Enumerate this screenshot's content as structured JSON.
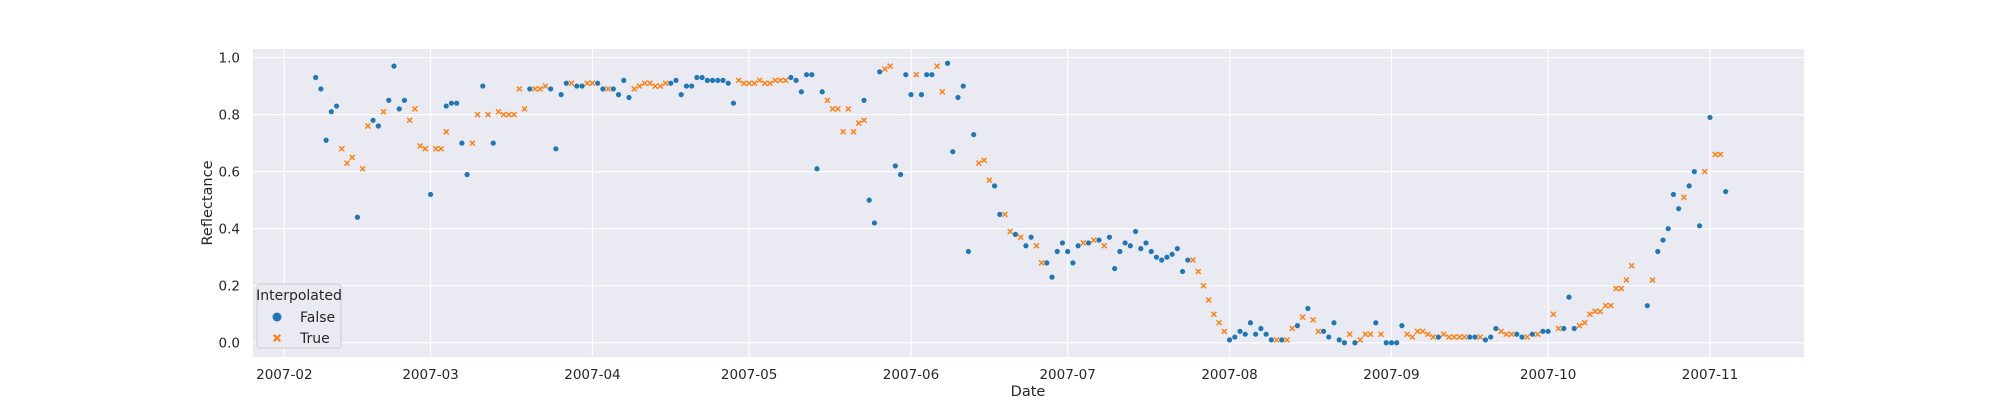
{
  "chart_data": {
    "type": "scatter",
    "title": "",
    "xlabel": "Date",
    "ylabel": "Reflectance",
    "xlim": [
      "2007-01-26",
      "2007-11-19"
    ],
    "ylim": [
      -0.05,
      1.03
    ],
    "x_ticks": [
      "2007-02-01",
      "2007-03-01",
      "2007-04-01",
      "2007-05-01",
      "2007-06-01",
      "2007-07-01",
      "2007-08-01",
      "2007-09-01",
      "2007-10-01",
      "2007-11-01"
    ],
    "x_tick_labels": [
      "2007-02",
      "2007-03",
      "2007-04",
      "2007-05",
      "2007-06",
      "2007-07",
      "2007-08",
      "2007-09",
      "2007-10",
      "2007-11"
    ],
    "y_ticks": [
      0.0,
      0.2,
      0.4,
      0.6,
      0.8,
      1.0
    ],
    "y_tick_labels": [
      "0.0",
      "0.2",
      "0.4",
      "0.6",
      "0.8",
      "1.0"
    ],
    "grid": true,
    "legend": {
      "title": "Interpolated",
      "placement": "lower-left",
      "entries": [
        "False",
        "True"
      ]
    },
    "series": [
      {
        "name": "False",
        "color": "#1f77b4",
        "marker": "circle",
        "points": [
          [
            "2007-02-07",
            0.93
          ],
          [
            "2007-02-08",
            0.89
          ],
          [
            "2007-02-09",
            0.71
          ],
          [
            "2007-02-10",
            0.81
          ],
          [
            "2007-02-11",
            0.83
          ],
          [
            "2007-02-15",
            0.44
          ],
          [
            "2007-02-18",
            0.78
          ],
          [
            "2007-02-19",
            0.76
          ],
          [
            "2007-02-21",
            0.85
          ],
          [
            "2007-02-22",
            0.97
          ],
          [
            "2007-02-23",
            0.82
          ],
          [
            "2007-02-24",
            0.85
          ],
          [
            "2007-03-01",
            0.52
          ],
          [
            "2007-03-04",
            0.83
          ],
          [
            "2007-03-05",
            0.84
          ],
          [
            "2007-03-06",
            0.84
          ],
          [
            "2007-03-07",
            0.7
          ],
          [
            "2007-03-08",
            0.59
          ],
          [
            "2007-03-11",
            0.9
          ],
          [
            "2007-03-13",
            0.7
          ],
          [
            "2007-03-20",
            0.89
          ],
          [
            "2007-03-24",
            0.89
          ],
          [
            "2007-03-25",
            0.68
          ],
          [
            "2007-03-26",
            0.87
          ],
          [
            "2007-03-27",
            0.91
          ],
          [
            "2007-03-29",
            0.9
          ],
          [
            "2007-03-30",
            0.9
          ],
          [
            "2007-04-02",
            0.91
          ],
          [
            "2007-04-03",
            0.89
          ],
          [
            "2007-04-05",
            0.89
          ],
          [
            "2007-04-06",
            0.87
          ],
          [
            "2007-04-07",
            0.92
          ],
          [
            "2007-04-08",
            0.86
          ],
          [
            "2007-04-16",
            0.91
          ],
          [
            "2007-04-17",
            0.92
          ],
          [
            "2007-04-18",
            0.87
          ],
          [
            "2007-04-19",
            0.9
          ],
          [
            "2007-04-20",
            0.9
          ],
          [
            "2007-04-21",
            0.93
          ],
          [
            "2007-04-22",
            0.93
          ],
          [
            "2007-04-23",
            0.92
          ],
          [
            "2007-04-24",
            0.92
          ],
          [
            "2007-04-25",
            0.92
          ],
          [
            "2007-04-26",
            0.92
          ],
          [
            "2007-04-27",
            0.91
          ],
          [
            "2007-04-28",
            0.84
          ],
          [
            "2007-05-09",
            0.93
          ],
          [
            "2007-05-10",
            0.92
          ],
          [
            "2007-05-11",
            0.88
          ],
          [
            "2007-05-12",
            0.94
          ],
          [
            "2007-05-13",
            0.94
          ],
          [
            "2007-05-14",
            0.61
          ],
          [
            "2007-05-15",
            0.88
          ],
          [
            "2007-05-23",
            0.85
          ],
          [
            "2007-05-24",
            0.5
          ],
          [
            "2007-05-25",
            0.42
          ],
          [
            "2007-05-26",
            0.95
          ],
          [
            "2007-05-29",
            0.62
          ],
          [
            "2007-05-30",
            0.59
          ],
          [
            "2007-05-31",
            0.94
          ],
          [
            "2007-06-01",
            0.87
          ],
          [
            "2007-06-03",
            0.87
          ],
          [
            "2007-06-04",
            0.94
          ],
          [
            "2007-06-05",
            0.94
          ],
          [
            "2007-06-08",
            0.98
          ],
          [
            "2007-06-09",
            0.67
          ],
          [
            "2007-06-10",
            0.86
          ],
          [
            "2007-06-11",
            0.9
          ],
          [
            "2007-06-12",
            0.32
          ],
          [
            "2007-06-13",
            0.73
          ],
          [
            "2007-06-17",
            0.55
          ],
          [
            "2007-06-18",
            0.45
          ],
          [
            "2007-06-21",
            0.38
          ],
          [
            "2007-06-23",
            0.34
          ],
          [
            "2007-06-24",
            0.37
          ],
          [
            "2007-06-27",
            0.28
          ],
          [
            "2007-06-28",
            0.23
          ],
          [
            "2007-06-29",
            0.32
          ],
          [
            "2007-06-30",
            0.35
          ],
          [
            "2007-07-01",
            0.32
          ],
          [
            "2007-07-02",
            0.28
          ],
          [
            "2007-07-03",
            0.34
          ],
          [
            "2007-07-05",
            0.35
          ],
          [
            "2007-07-07",
            0.36
          ],
          [
            "2007-07-09",
            0.37
          ],
          [
            "2007-07-10",
            0.26
          ],
          [
            "2007-07-11",
            0.32
          ],
          [
            "2007-07-12",
            0.35
          ],
          [
            "2007-07-13",
            0.34
          ],
          [
            "2007-07-14",
            0.39
          ],
          [
            "2007-07-15",
            0.33
          ],
          [
            "2007-07-16",
            0.35
          ],
          [
            "2007-07-17",
            0.32
          ],
          [
            "2007-07-18",
            0.3
          ],
          [
            "2007-07-19",
            0.29
          ],
          [
            "2007-07-20",
            0.3
          ],
          [
            "2007-07-21",
            0.31
          ],
          [
            "2007-07-22",
            0.33
          ],
          [
            "2007-07-23",
            0.25
          ],
          [
            "2007-07-24",
            0.29
          ],
          [
            "2007-08-01",
            0.01
          ],
          [
            "2007-08-02",
            0.02
          ],
          [
            "2007-08-03",
            0.04
          ],
          [
            "2007-08-04",
            0.03
          ],
          [
            "2007-08-05",
            0.07
          ],
          [
            "2007-08-06",
            0.03
          ],
          [
            "2007-08-07",
            0.05
          ],
          [
            "2007-08-08",
            0.03
          ],
          [
            "2007-08-09",
            0.01
          ],
          [
            "2007-08-11",
            0.01
          ],
          [
            "2007-08-14",
            0.06
          ],
          [
            "2007-08-16",
            0.12
          ],
          [
            "2007-08-19",
            0.04
          ],
          [
            "2007-08-20",
            0.02
          ],
          [
            "2007-08-21",
            0.07
          ],
          [
            "2007-08-22",
            0.01
          ],
          [
            "2007-08-23",
            0.0
          ],
          [
            "2007-08-25",
            0.0
          ],
          [
            "2007-08-29",
            0.07
          ],
          [
            "2007-08-31",
            0.0
          ],
          [
            "2007-09-01",
            0.0
          ],
          [
            "2007-09-02",
            0.0
          ],
          [
            "2007-09-03",
            0.06
          ],
          [
            "2007-09-10",
            0.02
          ],
          [
            "2007-09-16",
            0.02
          ],
          [
            "2007-09-17",
            0.02
          ],
          [
            "2007-09-19",
            0.01
          ],
          [
            "2007-09-20",
            0.02
          ],
          [
            "2007-09-21",
            0.05
          ],
          [
            "2007-09-25",
            0.03
          ],
          [
            "2007-09-26",
            0.02
          ],
          [
            "2007-09-28",
            0.03
          ],
          [
            "2007-09-30",
            0.04
          ],
          [
            "2007-10-01",
            0.04
          ],
          [
            "2007-10-04",
            0.05
          ],
          [
            "2007-10-05",
            0.16
          ],
          [
            "2007-10-06",
            0.05
          ],
          [
            "2007-10-20",
            0.13
          ],
          [
            "2007-10-22",
            0.32
          ],
          [
            "2007-10-23",
            0.36
          ],
          [
            "2007-10-24",
            0.4
          ],
          [
            "2007-10-25",
            0.52
          ],
          [
            "2007-10-26",
            0.47
          ],
          [
            "2007-10-28",
            0.55
          ],
          [
            "2007-10-29",
            0.6
          ],
          [
            "2007-10-30",
            0.41
          ],
          [
            "2007-11-01",
            0.79
          ],
          [
            "2007-11-04",
            0.53
          ]
        ]
      },
      {
        "name": "True",
        "color": "#ff7f0e",
        "marker": "x",
        "points": [
          [
            "2007-02-12",
            0.68
          ],
          [
            "2007-02-13",
            0.63
          ],
          [
            "2007-02-14",
            0.65
          ],
          [
            "2007-02-16",
            0.61
          ],
          [
            "2007-02-17",
            0.76
          ],
          [
            "2007-02-20",
            0.81
          ],
          [
            "2007-02-25",
            0.78
          ],
          [
            "2007-02-26",
            0.82
          ],
          [
            "2007-02-27",
            0.69
          ],
          [
            "2007-02-28",
            0.68
          ],
          [
            "2007-03-02",
            0.68
          ],
          [
            "2007-03-03",
            0.68
          ],
          [
            "2007-03-04",
            0.74
          ],
          [
            "2007-03-09",
            0.7
          ],
          [
            "2007-03-10",
            0.8
          ],
          [
            "2007-03-12",
            0.8
          ],
          [
            "2007-03-14",
            0.81
          ],
          [
            "2007-03-15",
            0.8
          ],
          [
            "2007-03-16",
            0.8
          ],
          [
            "2007-03-17",
            0.8
          ],
          [
            "2007-03-18",
            0.89
          ],
          [
            "2007-03-19",
            0.82
          ],
          [
            "2007-03-21",
            0.89
          ],
          [
            "2007-03-22",
            0.89
          ],
          [
            "2007-03-23",
            0.9
          ],
          [
            "2007-03-28",
            0.91
          ],
          [
            "2007-03-31",
            0.91
          ],
          [
            "2007-04-01",
            0.91
          ],
          [
            "2007-04-04",
            0.89
          ],
          [
            "2007-04-09",
            0.89
          ],
          [
            "2007-04-10",
            0.9
          ],
          [
            "2007-04-11",
            0.91
          ],
          [
            "2007-04-12",
            0.91
          ],
          [
            "2007-04-13",
            0.9
          ],
          [
            "2007-04-14",
            0.9
          ],
          [
            "2007-04-15",
            0.91
          ],
          [
            "2007-04-29",
            0.92
          ],
          [
            "2007-04-30",
            0.91
          ],
          [
            "2007-05-01",
            0.91
          ],
          [
            "2007-05-02",
            0.91
          ],
          [
            "2007-05-03",
            0.92
          ],
          [
            "2007-05-04",
            0.91
          ],
          [
            "2007-05-05",
            0.91
          ],
          [
            "2007-05-06",
            0.92
          ],
          [
            "2007-05-07",
            0.92
          ],
          [
            "2007-05-08",
            0.92
          ],
          [
            "2007-05-16",
            0.85
          ],
          [
            "2007-05-17",
            0.82
          ],
          [
            "2007-05-18",
            0.82
          ],
          [
            "2007-05-19",
            0.74
          ],
          [
            "2007-05-20",
            0.82
          ],
          [
            "2007-05-21",
            0.74
          ],
          [
            "2007-05-22",
            0.77
          ],
          [
            "2007-05-23",
            0.78
          ],
          [
            "2007-05-27",
            0.96
          ],
          [
            "2007-05-28",
            0.97
          ],
          [
            "2007-06-02",
            0.94
          ],
          [
            "2007-06-06",
            0.97
          ],
          [
            "2007-06-07",
            0.88
          ],
          [
            "2007-06-14",
            0.63
          ],
          [
            "2007-06-15",
            0.64
          ],
          [
            "2007-06-16",
            0.57
          ],
          [
            "2007-06-19",
            0.45
          ],
          [
            "2007-06-20",
            0.39
          ],
          [
            "2007-06-22",
            0.37
          ],
          [
            "2007-06-25",
            0.34
          ],
          [
            "2007-06-26",
            0.28
          ],
          [
            "2007-07-04",
            0.35
          ],
          [
            "2007-07-06",
            0.36
          ],
          [
            "2007-07-08",
            0.34
          ],
          [
            "2007-07-25",
            0.29
          ],
          [
            "2007-07-26",
            0.25
          ],
          [
            "2007-07-27",
            0.2
          ],
          [
            "2007-07-28",
            0.15
          ],
          [
            "2007-07-29",
            0.1
          ],
          [
            "2007-07-30",
            0.07
          ],
          [
            "2007-07-31",
            0.04
          ],
          [
            "2007-08-10",
            0.01
          ],
          [
            "2007-08-12",
            0.01
          ],
          [
            "2007-08-13",
            0.05
          ],
          [
            "2007-08-15",
            0.09
          ],
          [
            "2007-08-17",
            0.08
          ],
          [
            "2007-08-18",
            0.04
          ],
          [
            "2007-08-24",
            0.03
          ],
          [
            "2007-08-26",
            0.01
          ],
          [
            "2007-08-27",
            0.03
          ],
          [
            "2007-08-28",
            0.03
          ],
          [
            "2007-08-30",
            0.03
          ],
          [
            "2007-09-04",
            0.03
          ],
          [
            "2007-09-05",
            0.02
          ],
          [
            "2007-09-06",
            0.04
          ],
          [
            "2007-09-07",
            0.04
          ],
          [
            "2007-09-08",
            0.03
          ],
          [
            "2007-09-09",
            0.02
          ],
          [
            "2007-09-11",
            0.03
          ],
          [
            "2007-09-12",
            0.02
          ],
          [
            "2007-09-13",
            0.02
          ],
          [
            "2007-09-14",
            0.02
          ],
          [
            "2007-09-15",
            0.02
          ],
          [
            "2007-09-18",
            0.02
          ],
          [
            "2007-09-22",
            0.04
          ],
          [
            "2007-09-23",
            0.03
          ],
          [
            "2007-09-24",
            0.03
          ],
          [
            "2007-09-27",
            0.02
          ],
          [
            "2007-09-29",
            0.03
          ],
          [
            "2007-10-02",
            0.1
          ],
          [
            "2007-10-03",
            0.05
          ],
          [
            "2007-10-07",
            0.06
          ],
          [
            "2007-10-08",
            0.07
          ],
          [
            "2007-10-09",
            0.1
          ],
          [
            "2007-10-10",
            0.11
          ],
          [
            "2007-10-11",
            0.11
          ],
          [
            "2007-10-12",
            0.13
          ],
          [
            "2007-10-13",
            0.13
          ],
          [
            "2007-10-14",
            0.19
          ],
          [
            "2007-10-15",
            0.19
          ],
          [
            "2007-10-16",
            0.22
          ],
          [
            "2007-10-17",
            0.27
          ],
          [
            "2007-10-21",
            0.22
          ],
          [
            "2007-10-27",
            0.51
          ],
          [
            "2007-10-31",
            0.6
          ],
          [
            "2007-11-02",
            0.66
          ],
          [
            "2007-11-03",
            0.66
          ]
        ]
      }
    ]
  }
}
